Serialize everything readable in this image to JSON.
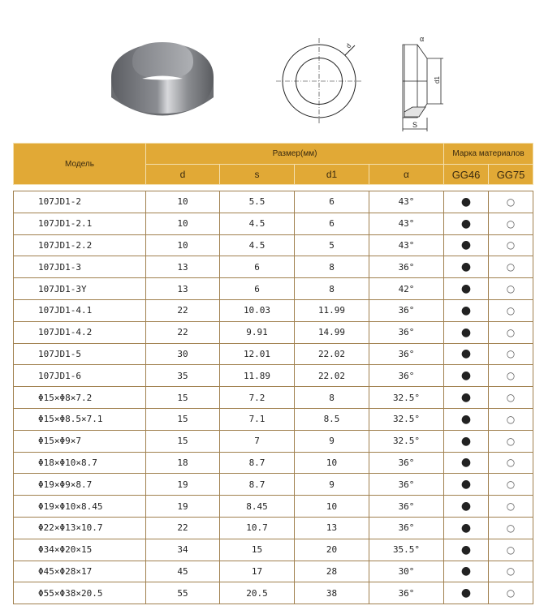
{
  "figures": {
    "label_d": "d",
    "label_d1": "d1",
    "label_s": "S",
    "label_alpha": "α"
  },
  "header": {
    "model": "Модель",
    "size_group": "Размер(мм)",
    "material_group": "Марка материалов",
    "cols": [
      "d",
      "s",
      "d1",
      "α"
    ],
    "materials": [
      "GG46",
      "GG75"
    ]
  },
  "rows": [
    {
      "model": "107JD1-2",
      "d": "10",
      "s": "5.5",
      "d1": "6",
      "a": "43°",
      "gg46": "●",
      "gg75": "○"
    },
    {
      "model": "107JD1-2.1",
      "d": "10",
      "s": "4.5",
      "d1": "6",
      "a": "43°",
      "gg46": "●",
      "gg75": "○"
    },
    {
      "model": "107JD1-2.2",
      "d": "10",
      "s": "4.5",
      "d1": "5",
      "a": "43°",
      "gg46": "●",
      "gg75": "○"
    },
    {
      "model": "107JD1-3",
      "d": "13",
      "s": "6",
      "d1": "8",
      "a": "36°",
      "gg46": "●",
      "gg75": "○"
    },
    {
      "model": "107JD1-3Y",
      "d": "13",
      "s": "6",
      "d1": "8",
      "a": "42°",
      "gg46": "●",
      "gg75": "○"
    },
    {
      "model": "107JD1-4.1",
      "d": "22",
      "s": "10.03",
      "d1": "11.99",
      "a": "36°",
      "gg46": "●",
      "gg75": "○"
    },
    {
      "model": "107JD1-4.2",
      "d": "22",
      "s": "9.91",
      "d1": "14.99",
      "a": "36°",
      "gg46": "●",
      "gg75": "○"
    },
    {
      "model": "107JD1-5",
      "d": "30",
      "s": "12.01",
      "d1": "22.02",
      "a": "36°",
      "gg46": "●",
      "gg75": "○"
    },
    {
      "model": "107JD1-6",
      "d": "35",
      "s": "11.89",
      "d1": "22.02",
      "a": "36°",
      "gg46": "●",
      "gg75": "○"
    },
    {
      "model": "Φ15×Φ8×7.2",
      "d": "15",
      "s": "7.2",
      "d1": "8",
      "a": "32.5°",
      "gg46": "●",
      "gg75": "○"
    },
    {
      "model": "Φ15×Φ8.5×7.1",
      "d": "15",
      "s": "7.1",
      "d1": "8.5",
      "a": "32.5°",
      "gg46": "●",
      "gg75": "○"
    },
    {
      "model": "Φ15×Φ9×7",
      "d": "15",
      "s": "7",
      "d1": "9",
      "a": "32.5°",
      "gg46": "●",
      "gg75": "○"
    },
    {
      "model": "Φ18×Φ10×8.7",
      "d": "18",
      "s": "8.7",
      "d1": "10",
      "a": "36°",
      "gg46": "●",
      "gg75": "○"
    },
    {
      "model": "Φ19×Φ9×8.7",
      "d": "19",
      "s": "8.7",
      "d1": "9",
      "a": "36°",
      "gg46": "●",
      "gg75": "○"
    },
    {
      "model": "Φ19×Φ10×8.45",
      "d": "19",
      "s": "8.45",
      "d1": "10",
      "a": "36°",
      "gg46": "●",
      "gg75": "○"
    },
    {
      "model": "Φ22×Φ13×10.7",
      "d": "22",
      "s": "10.7",
      "d1": "13",
      "a": "36°",
      "gg46": "●",
      "gg75": "○"
    },
    {
      "model": "Φ34×Φ20×15",
      "d": "34",
      "s": "15",
      "d1": "20",
      "a": "35.5°",
      "gg46": "●",
      "gg75": "○"
    },
    {
      "model": "Φ45×Φ28×17",
      "d": "45",
      "s": "17",
      "d1": "28",
      "a": "30°",
      "gg46": "●",
      "gg75": "○"
    },
    {
      "model": "Φ55×Φ38×20.5",
      "d": "55",
      "s": "20.5",
      "d1": "38",
      "a": "36°",
      "gg46": "●",
      "gg75": "○"
    }
  ]
}
